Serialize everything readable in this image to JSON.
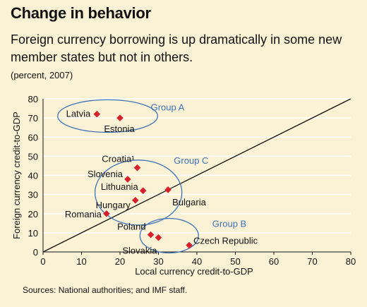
{
  "header": {
    "title": "Change in behavior",
    "subtitle": "Foreign currency borrowing is up dramatically in some new member states but not in others.",
    "unit_note": "(percent, 2007)"
  },
  "footer": {
    "source": "Sources: National authorities; and IMF staff."
  },
  "colors": {
    "background": "#fbf2d6",
    "marker": "#d6202a",
    "group_ellipse": "#3d73b9",
    "group_label": "#3d73b9",
    "diagonal": "#111111"
  },
  "chart_data": {
    "type": "scatter",
    "title": "Change in behavior",
    "xlabel": "Local currency credit-to-GDP",
    "ylabel": "Foreign currency credit-to-GDP",
    "xlim": [
      0,
      80
    ],
    "ylim": [
      0,
      80
    ],
    "xticks": [
      0,
      10,
      20,
      30,
      40,
      50,
      60,
      70,
      80
    ],
    "yticks": [
      0,
      10,
      20,
      30,
      40,
      50,
      60,
      70,
      80
    ],
    "grid": true,
    "reference_line": "45-degree line (y = x)",
    "points": [
      {
        "label": "Latvia",
        "x": 14,
        "y": 72
      },
      {
        "label": "Estonia",
        "x": 20,
        "y": 70
      },
      {
        "label": "Croatia¹",
        "x": 24.5,
        "y": 44
      },
      {
        "label": "Slovenia",
        "x": 22,
        "y": 38
      },
      {
        "label": "Lithuania",
        "x": 26,
        "y": 32
      },
      {
        "label": "Hungary",
        "x": 24,
        "y": 27
      },
      {
        "label": "Bulgaria",
        "x": 32.5,
        "y": 32.5
      },
      {
        "label": "Romania",
        "x": 16.5,
        "y": 20
      },
      {
        "label": "Poland",
        "x": 28,
        "y": 9
      },
      {
        "label": "Slovakia",
        "x": 30,
        "y": 7.5
      },
      {
        "label": "Czech Republic",
        "x": 38,
        "y": 3.5
      }
    ],
    "groups": [
      {
        "name": "Group A",
        "members": [
          "Latvia",
          "Estonia"
        ]
      },
      {
        "name": "Group C",
        "members": [
          "Croatia¹",
          "Slovenia",
          "Lithuania",
          "Hungary",
          "Bulgaria",
          "Romania"
        ]
      },
      {
        "name": "Group B",
        "members": [
          "Poland",
          "Slovakia",
          "Czech Republic"
        ]
      }
    ]
  }
}
